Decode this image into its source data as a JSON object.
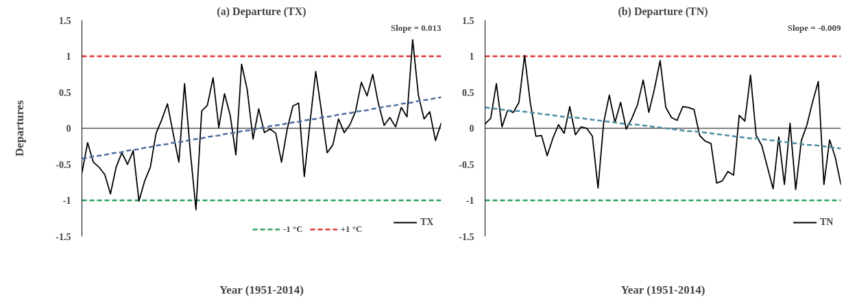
{
  "chart_data": [
    {
      "type": "line",
      "title": "(a) Departure (TX)",
      "xlabel": "Year (1951-2014)",
      "ylabel": "Departures",
      "categories": [
        null,
        null,
        null,
        null,
        null,
        null,
        null,
        null,
        null,
        null,
        null,
        null,
        null,
        null,
        null,
        null,
        null,
        null,
        null,
        null,
        null,
        null,
        null,
        null,
        null,
        null,
        null,
        null,
        null,
        null,
        null,
        null,
        null,
        null,
        null,
        null,
        null,
        null,
        null,
        null,
        null,
        null,
        null,
        null,
        null,
        null,
        null,
        null,
        null,
        null,
        null,
        null,
        null,
        null,
        null,
        null,
        null,
        null,
        null,
        null,
        null,
        null,
        null,
        null
      ],
      "series": [
        {
          "name": "TX",
          "color": "#000000",
          "values": [
            -0.62,
            -0.2,
            -0.47,
            -0.54,
            -0.64,
            -0.91,
            -0.54,
            -0.34,
            -0.5,
            -0.31,
            -1.01,
            -0.73,
            -0.54,
            -0.07,
            0.12,
            0.34,
            -0.07,
            -0.47,
            0.62,
            -0.32,
            -1.13,
            0.24,
            0.32,
            0.7,
            0.01,
            0.48,
            0.18,
            -0.37,
            0.89,
            0.53,
            -0.15,
            0.27,
            -0.06,
            -0.01,
            -0.07,
            -0.47,
            -0.01,
            0.31,
            0.35,
            -0.67,
            0.08,
            0.79,
            0.24,
            -0.34,
            -0.23,
            0.13,
            -0.06,
            0.05,
            0.24,
            0.64,
            0.45,
            0.75,
            0.34,
            0.04,
            0.15,
            0.02,
            0.29,
            0.16,
            1.23,
            0.46,
            0.13,
            0.23,
            -0.17,
            0.07
          ]
        },
        {
          "type": "line",
          "color": "#4a6d9c",
          "line_style": "dashed",
          "values": [
            -0.42,
            -0.41,
            -0.39,
            -0.38,
            -0.37,
            -0.35,
            -0.34,
            -0.33,
            -0.31,
            -0.3,
            -0.29,
            -0.27,
            -0.26,
            -0.24,
            -0.23,
            -0.22,
            -0.2,
            -0.19,
            -0.18,
            -0.16,
            -0.15,
            -0.14,
            -0.12,
            -0.11,
            -0.1,
            -0.08,
            -0.07,
            -0.06,
            -0.04,
            -0.03,
            -0.02,
            0.0,
            0.01,
            0.03,
            0.04,
            0.05,
            0.07,
            0.08,
            0.09,
            0.11,
            0.12,
            0.13,
            0.15,
            0.16,
            0.17,
            0.19,
            0.2,
            0.21,
            0.23,
            0.24,
            0.25,
            0.27,
            0.28,
            0.3,
            0.31,
            0.32,
            0.34,
            0.35,
            0.36,
            0.38,
            0.39,
            0.4,
            0.42,
            0.43
          ]
        }
      ],
      "ylim": [
        -1.5,
        1.5
      ],
      "yticks": [
        -1.5,
        -1,
        -0.5,
        0,
        0.5,
        1,
        1.5
      ],
      "tick_labels": "y",
      "ref_lines": [
        {
          "axis": "y",
          "value": 0,
          "color": "#000000",
          "line_style": "solid"
        },
        {
          "axis": "y",
          "value": -1,
          "label": "-1 °C",
          "color": "#2aa05c",
          "line_style": "dashed"
        },
        {
          "axis": "y",
          "value": 1,
          "label": "+1 °C",
          "color": "#e03030",
          "line_style": "dashed"
        }
      ],
      "annotations": [
        "Slope = 0.013"
      ],
      "legend": "bottom right"
    },
    {
      "type": "line",
      "title": "(b) Departure (TN)",
      "xlabel": "Year (1951-2014)",
      "categories": [
        null,
        null,
        null,
        null,
        null,
        null,
        null,
        null,
        null,
        null,
        null,
        null,
        null,
        null,
        null,
        null,
        null,
        null,
        null,
        null,
        null,
        null,
        null,
        null,
        null,
        null,
        null,
        null,
        null,
        null,
        null,
        null,
        null,
        null,
        null,
        null,
        null,
        null,
        null,
        null,
        null,
        null,
        null,
        null,
        null,
        null,
        null,
        null,
        null,
        null,
        null,
        null,
        null,
        null,
        null,
        null,
        null,
        null,
        null,
        null,
        null,
        null,
        null,
        null
      ],
      "series": [
        {
          "name": "TN",
          "color": "#000000",
          "values": [
            0.06,
            0.14,
            0.62,
            0.02,
            0.25,
            0.22,
            0.36,
            1.01,
            0.36,
            -0.11,
            -0.1,
            -0.38,
            -0.14,
            0.05,
            -0.07,
            0.3,
            -0.09,
            0.02,
            0.0,
            -0.11,
            -0.83,
            0.08,
            0.46,
            0.08,
            0.36,
            -0.01,
            0.14,
            0.33,
            0.67,
            0.22,
            0.55,
            0.94,
            0.29,
            0.15,
            0.11,
            0.3,
            0.29,
            0.26,
            -0.1,
            -0.18,
            -0.21,
            -0.76,
            -0.73,
            -0.6,
            -0.65,
            0.18,
            0.1,
            0.74,
            -0.1,
            -0.24,
            -0.54,
            -0.84,
            -0.12,
            -0.78,
            0.07,
            -0.85,
            -0.17,
            0.05,
            0.37,
            0.65,
            -0.78,
            -0.16,
            -0.4,
            -0.78
          ]
        },
        {
          "type": "line",
          "color": "#4b8ca6",
          "line_style": "dashed",
          "values": [
            0.29,
            0.28,
            0.27,
            0.26,
            0.25,
            0.24,
            0.24,
            0.23,
            0.22,
            0.21,
            0.2,
            0.19,
            0.18,
            0.17,
            0.16,
            0.15,
            0.15,
            0.14,
            0.13,
            0.12,
            0.11,
            0.1,
            0.09,
            0.08,
            0.07,
            0.06,
            0.05,
            0.05,
            0.04,
            0.03,
            0.02,
            0.01,
            0.0,
            -0.01,
            -0.02,
            -0.03,
            -0.04,
            -0.04,
            -0.05,
            -0.06,
            -0.07,
            -0.08,
            -0.09,
            -0.1,
            -0.11,
            -0.12,
            -0.13,
            -0.14,
            -0.14,
            -0.15,
            -0.16,
            -0.17,
            -0.18,
            -0.19,
            -0.2,
            -0.21,
            -0.22,
            -0.23,
            -0.23,
            -0.24,
            -0.25,
            -0.26,
            -0.27,
            -0.28
          ]
        }
      ],
      "ylim": [
        -1.5,
        1.5
      ],
      "yticks": [
        -1.5,
        -1,
        -0.5,
        0,
        0.5,
        1,
        1.5
      ],
      "tick_labels": "y",
      "ref_lines": [
        {
          "axis": "y",
          "value": 0,
          "color": "#000000",
          "line_style": "solid"
        },
        {
          "axis": "y",
          "value": -1,
          "color": "#2aa05c",
          "line_style": "dashed"
        },
        {
          "axis": "y",
          "value": 1,
          "color": "#e03030",
          "line_style": "dashed"
        }
      ],
      "annotations": [
        "Slope = -0.009"
      ],
      "legend": "bottom right"
    }
  ]
}
